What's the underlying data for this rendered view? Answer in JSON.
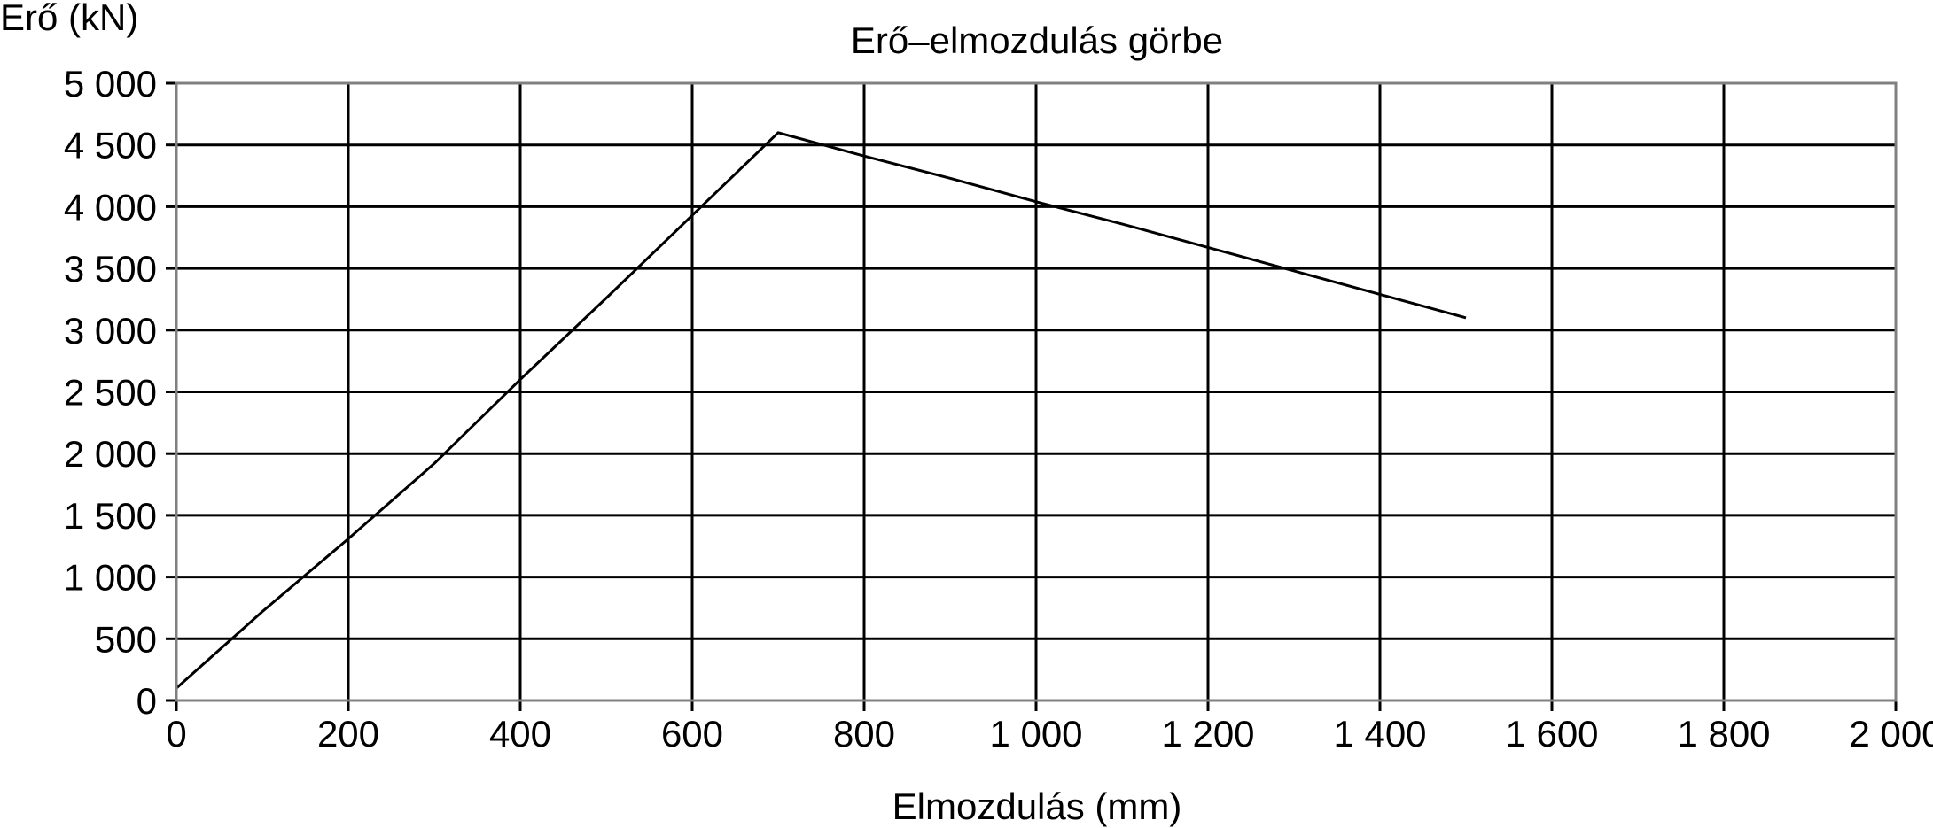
{
  "chart_data": {
    "type": "line",
    "title": "Erő–elmozdulás görbe",
    "xlabel": "Elmozdulás (mm)",
    "ylabel": "Erő (kN)",
    "xlim": [
      0,
      2000
    ],
    "ylim": [
      0,
      5000
    ],
    "x_ticks": [
      0,
      200,
      400,
      600,
      800,
      1000,
      1200,
      1400,
      1600,
      1800,
      2000
    ],
    "x_tick_labels": [
      "0",
      "200",
      "400",
      "600",
      "800",
      "1 000",
      "1 200",
      "1 400",
      "1 600",
      "1 800",
      "2 000"
    ],
    "y_ticks": [
      0,
      500,
      1000,
      1500,
      2000,
      2500,
      3000,
      3500,
      4000,
      4500,
      5000
    ],
    "y_tick_labels": [
      "0",
      "500",
      "1 000",
      "1 500",
      "2 000",
      "2 500",
      "3 000",
      "3 500",
      "4 000",
      "4 500",
      "5 000"
    ],
    "grid": true,
    "legend": "none",
    "series": [
      {
        "color": "#000000",
        "x": [
          0,
          100,
          200,
          300,
          400,
          500,
          600,
          700,
          800,
          900,
          1000,
          1100,
          1200,
          1300,
          1400,
          1500
        ],
        "y": [
          100,
          720,
          1310,
          1920,
          2600,
          3260,
          3930,
          4600,
          4410,
          4230,
          4040,
          3860,
          3670,
          3480,
          3290,
          3100
        ]
      }
    ]
  }
}
